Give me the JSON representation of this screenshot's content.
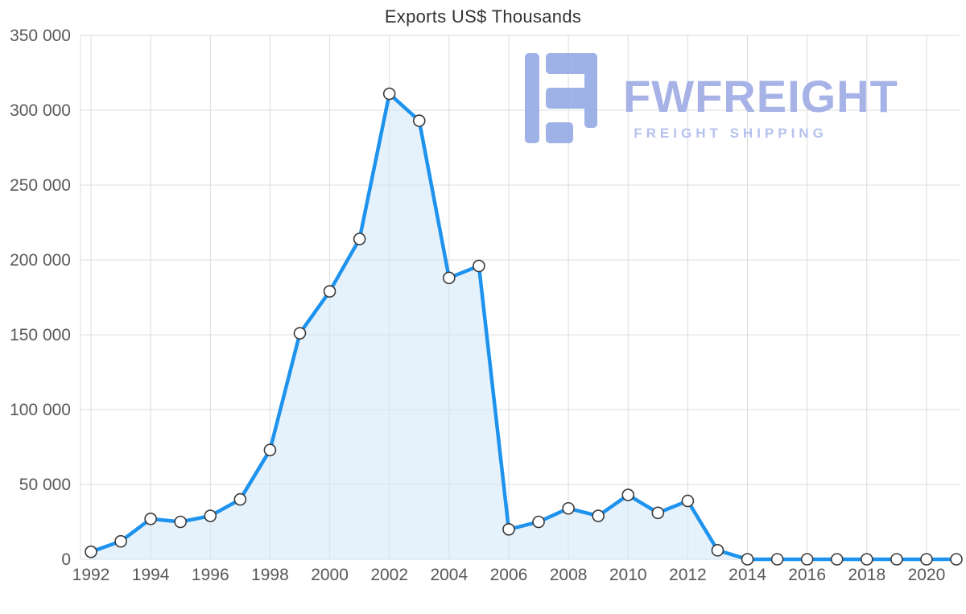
{
  "watermark": {
    "brand": "FWFREIGHT",
    "tagline": "FREIGHT SHIPPING",
    "logo_color": "#8fa5e5"
  },
  "chart_data": {
    "type": "area",
    "title": "Exports US$ Thousands",
    "x": [
      1992,
      1993,
      1994,
      1995,
      1996,
      1997,
      1998,
      1999,
      2000,
      2001,
      2002,
      2003,
      2004,
      2005,
      2006,
      2007,
      2008,
      2009,
      2010,
      2011,
      2012,
      2013,
      2014,
      2015,
      2016,
      2017,
      2018,
      2019,
      2020,
      2021
    ],
    "values": [
      5000,
      12000,
      27000,
      25000,
      29000,
      40000,
      73000,
      151000,
      179000,
      214000,
      311000,
      293000,
      188000,
      196000,
      20000,
      25000,
      34000,
      29000,
      43000,
      31000,
      39000,
      6000,
      0,
      0,
      0,
      0,
      0,
      0,
      0,
      0
    ],
    "xticks": [
      1992,
      1994,
      1996,
      1998,
      2000,
      2002,
      2004,
      2006,
      2008,
      2010,
      2012,
      2014,
      2016,
      2018,
      2020
    ],
    "yticks": [
      0,
      50000,
      100000,
      150000,
      200000,
      250000,
      300000,
      350000
    ],
    "ylim": [
      0,
      350000
    ],
    "xlabel": "",
    "ylabel": "",
    "grid": true,
    "legend": "none",
    "line_color": "#1e93ee",
    "fill_color": "#cfe5f7",
    "marker_fill": "#ffffff",
    "marker_stroke": "#3a3a3a"
  }
}
